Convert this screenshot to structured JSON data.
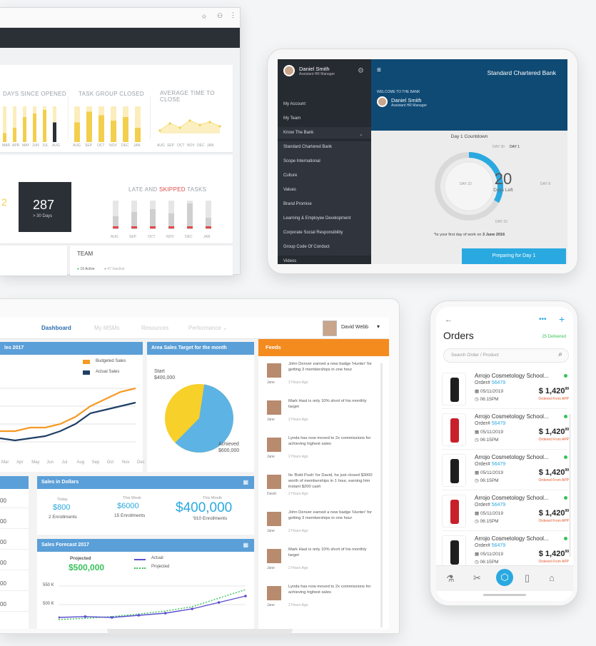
{
  "browser": {
    "cards": {
      "days_since_opened": "DAYS SINCE OPENED",
      "task_group_closed": "TASK GROUP CLOSED",
      "avg_time_to_close": "AVERAGE TIME TO CLOSE",
      "big_number": "287",
      "big_caption": "> 30 Days",
      "late_prefix": "LATE AND ",
      "late_skipped": "SKIPPED",
      "late_suffix": " TASKS",
      "team_title": "TEAM",
      "team_active": "16 Active",
      "team_inactive": "47 Inactive",
      "stray_digit": "2",
      "months1": [
        "MAR",
        "APR",
        "MAY",
        "JUN",
        "JUL",
        "AUG"
      ],
      "months2": [
        "AUG",
        "SEP",
        "OCT",
        "NOV",
        "DEC",
        "JAN"
      ],
      "months3": [
        "AUG",
        "SEP",
        "OCT",
        "NOV",
        "DEC",
        "JAN"
      ],
      "months4": [
        "AUG",
        "SEP",
        "OCT",
        "NOV",
        "DEC",
        "JAN"
      ]
    },
    "bars_days": [
      0.25,
      0.4,
      0.7,
      0.8,
      0.9,
      0.55
    ],
    "bars_task": [
      0.55,
      0.85,
      0.75,
      0.6,
      0.7,
      0.4
    ],
    "bars_late": [
      0.45,
      0.6,
      0.7,
      0.55,
      0.9,
      0.4
    ]
  },
  "tablet": {
    "user_name": "Daniel Smith",
    "user_role": "Assistant HR Manager",
    "bank_title": "Standard Chartered Bank",
    "welcome": "WELCOME TO THE BANK",
    "menu": [
      "My Account",
      "My Team",
      "Know The Bank",
      "Standard Chartered Bank",
      "Scope International",
      "Culture",
      "Values",
      "Brand Promise",
      "Learning & Employee Development",
      "Corporate Social Responsibility",
      "Group Code Of Conduct",
      "Videos"
    ],
    "countdown_title": "Day 1 Countdown",
    "days_left_number": "20",
    "days_left_label": "Days Left",
    "day_marks": [
      "DAY 30",
      "DAY 1",
      "DAY 8",
      "DAY 15",
      "DAY 22"
    ],
    "note_prefix": "*to your first day of work on ",
    "note_date": "3 June 2016",
    "cta": "Preparing for Day 1",
    "progress_fraction": 0.33
  },
  "laptop": {
    "nav": [
      "Dashboard",
      "My MSMs",
      "Resources",
      "Performance"
    ],
    "user": "David Webb",
    "sales_title": "les 2017",
    "legend_budget": "Budgeted Sales",
    "legend_actual": "Actual Sales",
    "sales_months": [
      "Mar",
      "Apr",
      "May",
      "Jun",
      "Jul",
      "Aug",
      "Sep",
      "Oct",
      "Nov",
      "Dec"
    ],
    "budgeted": [
      0.25,
      0.25,
      0.3,
      0.3,
      0.35,
      0.45,
      0.6,
      0.7,
      0.8,
      0.85
    ],
    "actual": [
      0.15,
      0.12,
      0.15,
      0.18,
      0.25,
      0.35,
      0.5,
      0.55,
      0.6,
      0.65
    ],
    "area_title": "Area Sales Target for the month",
    "start_label": "Start",
    "start_value": "$400,000",
    "achieved_label": "Achieved",
    "achieved_value": "$600,000",
    "pie_achieved_fraction": 0.6,
    "feeds_title": "Feeds",
    "feeds": [
      {
        "text": "John Denver earned a new badge 'Hunter' for getting 3 memberships in one hour",
        "who": "Jane",
        "time": "2 Hours Ago"
      },
      {
        "text": "Mark Haul is only 10% short of his monthly target",
        "who": "Jane",
        "time": "2 Hours Ago"
      },
      {
        "text": "Lynda has now moved to 2x commissions for achieving highest sales",
        "who": "Jane",
        "time": "2 Hours Ago"
      },
      {
        "text": "Its 'Bold Push' for David, he just closed $3000 worth of memberships in 1 hour, earning him instant $200 cash",
        "who": "David",
        "time": "2 Hours Ago"
      },
      {
        "text": "John Denver earned a new badge 'Hunter' for getting 3 memberships in one hour",
        "who": "Jane",
        "time": "2 Hours Ago"
      },
      {
        "text": "Mark Haul is only 10% short of his monthly target",
        "who": "Jane",
        "time": "2 Hours Ago"
      },
      {
        "text": "Lynda has now moved to 2x commissions for achieving highest sales",
        "who": "Jane",
        "time": "2 Hours Ago"
      }
    ],
    "sid_title": "Sales in Dollars",
    "today_label": "Today",
    "today_value": "$800",
    "today_sub": "2 Enrollments",
    "week_label": "This Week",
    "week_value": "$6000",
    "week_sub": "15 Enrollments",
    "month_label": "This Month",
    "month_value": "$400,000",
    "month_sub": "'910 Enrollments",
    "left_cells": [
      "00",
      "00",
      "00",
      "00",
      "00",
      "00"
    ],
    "forecast_title": "Sales Forecast 2017",
    "projected_label": "Projected",
    "projected_value": "$500,000",
    "legend_f_actual": "Actual",
    "legend_f_projected": "Projected",
    "f_y1": "550 K",
    "f_y2": "500 K",
    "forecast_actual": [
      0.1,
      0.12,
      0.1,
      0.15,
      0.2,
      0.3,
      0.45,
      0.6
    ],
    "forecast_proj": [
      0.05,
      0.08,
      0.12,
      0.18,
      0.25,
      0.35,
      0.55,
      0.75
    ]
  },
  "phone": {
    "title": "Orders",
    "delivered": "25 Delivered",
    "search_placeholder": "Search Order / Product",
    "orders": [
      {
        "name": "Arrojo Cosmetology School...",
        "num_label": "Order# ",
        "num": "56479",
        "date": "05/11/2019",
        "time": "06:15PM",
        "price": "$ 1,420",
        "cents": "99",
        "source": "Ordered From APP",
        "color": "#1e1e1e"
      },
      {
        "name": "Arrojo Cosmetology School...",
        "num_label": "Order# ",
        "num": "56479",
        "date": "05/11/2019",
        "time": "06:15PM",
        "price": "$ 1,420",
        "cents": "99",
        "source": "Ordered From APP",
        "color": "#c8202a"
      },
      {
        "name": "Arrojo Cosmetology School...",
        "num_label": "Order# ",
        "num": "56479",
        "date": "05/11/2019",
        "time": "06:15PM",
        "price": "$ 1,420",
        "cents": "99",
        "source": "Ordered From APP",
        "color": "#1e1e1e"
      },
      {
        "name": "Arrojo Cosmetology School...",
        "num_label": "Order# ",
        "num": "56479",
        "date": "05/11/2019",
        "time": "06:15PM",
        "price": "$ 1,420",
        "cents": "99",
        "source": "Ordered From APP",
        "color": "#c8202a"
      },
      {
        "name": "Arrojo Cosmetology School...",
        "num_label": "Order# ",
        "num": "56479",
        "date": "05/11/2019",
        "time": "06:15PM",
        "price": "$ 1,420",
        "cents": "99",
        "source": "Ordered From APP",
        "color": "#1e1e1e"
      }
    ],
    "tabs": [
      "products-icon",
      "tools-icon",
      "home-hex-icon",
      "phone-device-icon",
      "tags-icon"
    ]
  },
  "colors": {
    "accent_yellow": "#f7d24a",
    "dark_navy": "#0f4a74",
    "blue": "#2aa9e0",
    "orange": "#f59a23",
    "feeds_orange": "#f48b1e",
    "panel_blue": "#5a9fd8",
    "green": "#37c25a"
  }
}
